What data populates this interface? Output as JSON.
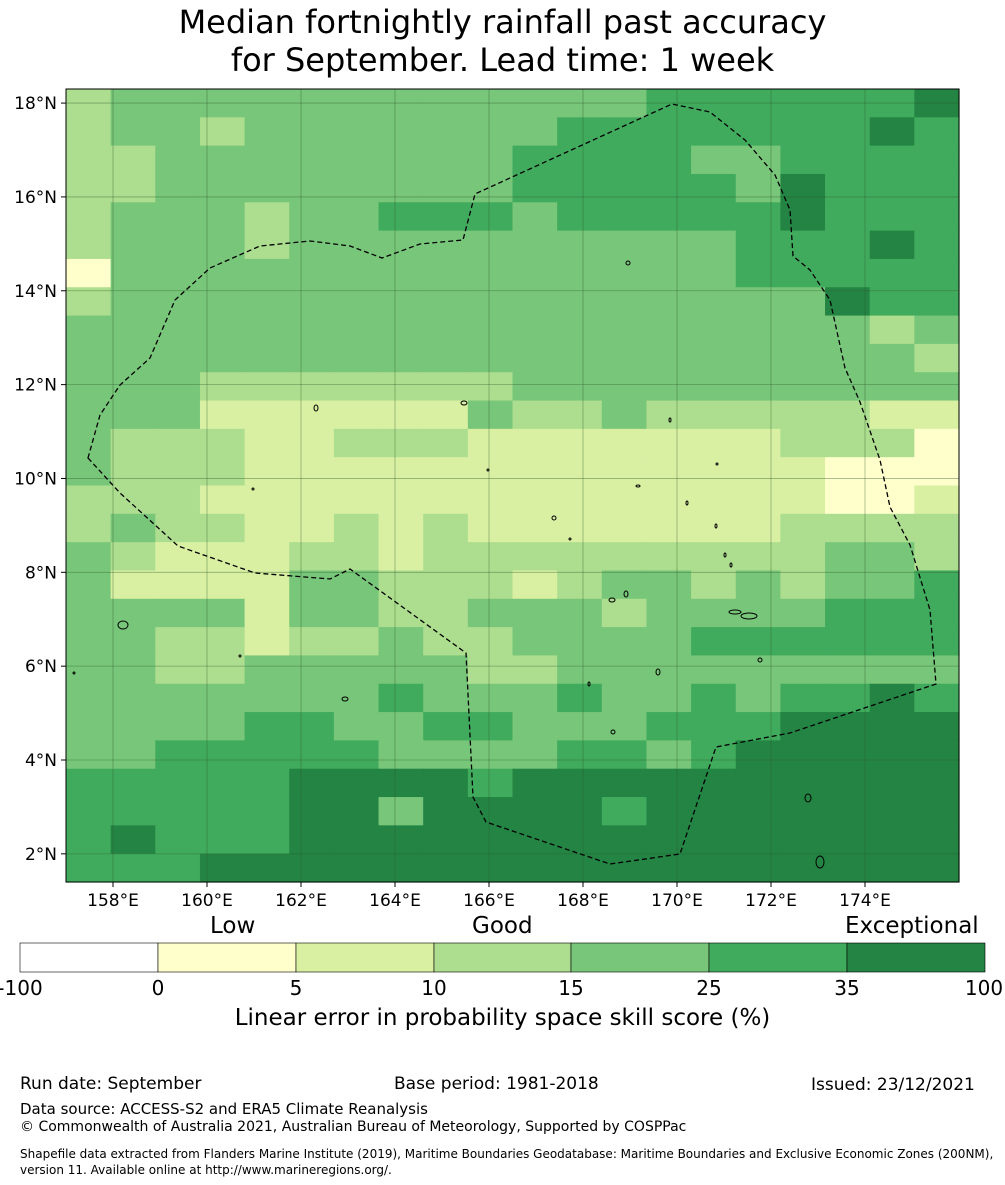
{
  "title": {
    "line1": "Median fortnightly rainfall past accuracy",
    "line2": "for September. Lead time: 1 week"
  },
  "map": {
    "lat_range": [
      1.4,
      18.3
    ],
    "lon_range": [
      157.0,
      176.0
    ],
    "lat_ticks": [
      "18°N",
      "16°N",
      "14°N",
      "12°N",
      "10°N",
      "8°N",
      "6°N",
      "4°N",
      "2°N"
    ],
    "lon_ticks": [
      "158°E",
      "160°E",
      "162°E",
      "164°E",
      "166°E",
      "168°E",
      "170°E",
      "172°E",
      "174°E"
    ],
    "grid": true,
    "eez_boundary": "dashed",
    "skill_grid": {
      "legend_key": {
        "1": "0-5",
        "2": "5-10",
        "3": "10-15",
        "4": "15-25",
        "5": "25-35",
        "6": "35-100"
      },
      "rows": [
        "34444444444445555556",
        "34434444444555555565",
        "33444444445555445555",
        "33444444445555546555",
        "34443445554555556555",
        "34443444444444455565",
        "14444444444444455555",
        "34444444444444444655",
        "44444444444444444434",
        "44444444444444444443",
        "44433333334444444444",
        "44422222243343333322",
        "43332233322222223331",
        "43332222222222222111",
        "33322222222222222112",
        "34332232322222223333",
        "43222332333333333443",
        "42222443332344343445",
        "44442443344434444555",
        "44332334334444555555",
        "44334444433444444444",
        "44444445444544545565",
        "44445544554445556666",
        "44555554444554566666",
        "55555666656666666666",
        "55555664666656666666",
        "56555666666666666666",
        "55566666666666666666"
      ]
    }
  },
  "colorbar": {
    "categories": [
      "Low",
      "Good",
      "Exceptional"
    ],
    "ticks": [
      "-100",
      "0",
      "5",
      "10",
      "15",
      "25",
      "35",
      "100"
    ],
    "colors": [
      "#ffffff",
      "#ffffcc",
      "#d9f0a3",
      "#addd8e",
      "#78c679",
      "#41ab5d",
      "#238443"
    ],
    "label": "Linear error in probability space skill score (%)"
  },
  "footer": {
    "run_date": "Run date: September",
    "base_period": "Base period: 1981-2018",
    "issued": "Issued: 23/12/2021",
    "data_source": "Data source: ACCESS-S2 and ERA5 Climate Reanalysis",
    "copyright": "© Commonwealth of Australia 2021, Australian Bureau of Meteorology, Supported by COSPPac",
    "shapefile": "Shapefile data extracted from Flanders Marine Institute (2019), Maritime Boundaries Geodatabase: Maritime Boundaries and Exclusive Economic Zones (200NM), version 11. Available online at http://www.marineregions.org/."
  }
}
